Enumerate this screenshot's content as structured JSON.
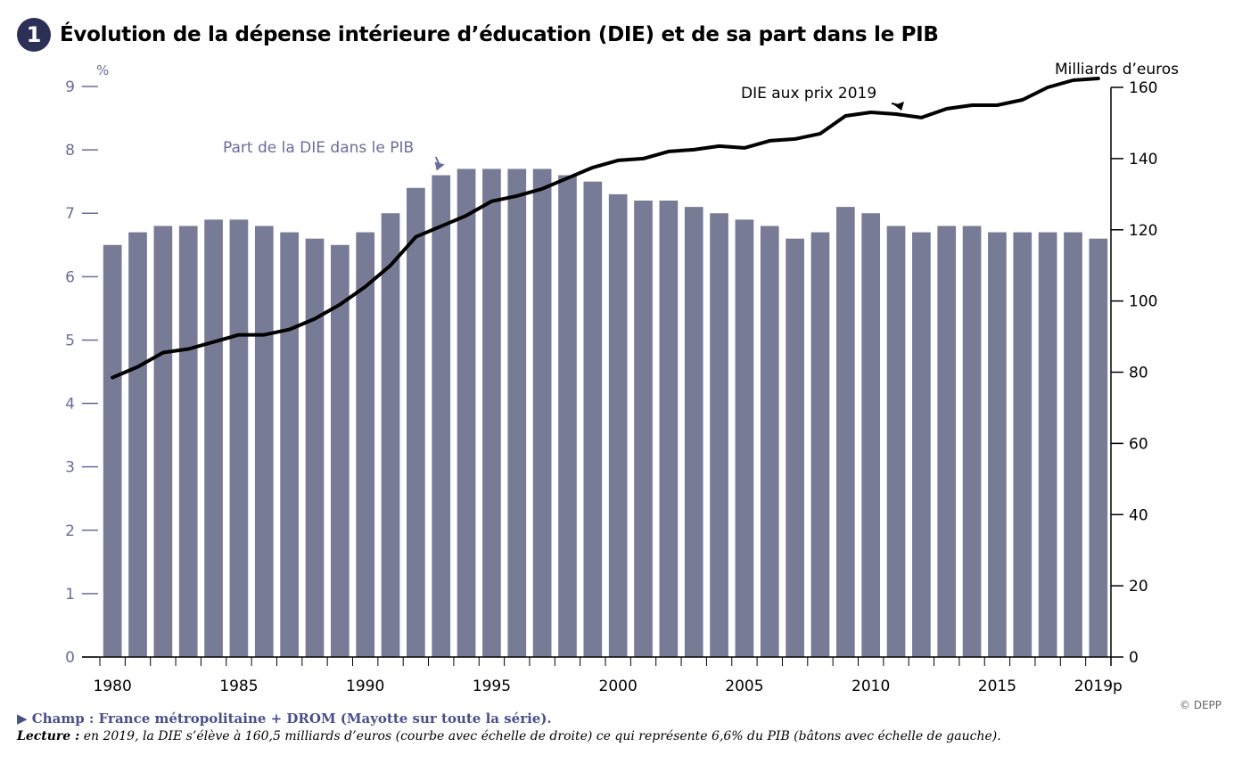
{
  "header": {
    "number": "1",
    "title": "Évolution de la dépense intérieure d’éducation (DIE) et de sa part dans le PIB"
  },
  "footer": {
    "champ": "▶  Champ : France métropolitaine + DROM (Mayotte sur toute la série).",
    "lecture_label": "Lecture :",
    "lecture_text": " en 2019, la DIE s’élève à 160,5 milliards d’euros (courbe avec échelle de droite) ce qui représente 6,6% du PIB (bâtons avec échelle de gauche).",
    "credit": "© DEPP"
  },
  "colors": {
    "bars": "#787b96",
    "line": "#000000",
    "left_axis_text": "#6a6d9a",
    "badge": "#2d3056"
  },
  "chart_data": {
    "type": "bar",
    "left_unit": "%",
    "right_unit": "Milliards d’euros",
    "ylim_left": [
      0,
      9
    ],
    "ylim_right": [
      0,
      160
    ],
    "left_ticks": [
      "0",
      "1",
      "2",
      "3",
      "4",
      "5",
      "6",
      "7",
      "8",
      "9"
    ],
    "right_ticks": [
      "0",
      "20",
      "40",
      "60",
      "80",
      "100",
      "120",
      "140",
      "160"
    ],
    "x_tick_labels": [
      "1980",
      "1985",
      "1990",
      "1995",
      "2000",
      "2005",
      "2010",
      "2015",
      "2019p"
    ],
    "categories": [
      "1980",
      "1981",
      "1982",
      "1983",
      "1984",
      "1985",
      "1986",
      "1987",
      "1988",
      "1989",
      "1990",
      "1991",
      "1992",
      "1993",
      "1994",
      "1995",
      "1996",
      "1997",
      "1998",
      "1999",
      "2000",
      "2001",
      "2002",
      "2003",
      "2004",
      "2005",
      "2006",
      "2007",
      "2008",
      "2009",
      "2010",
      "2011",
      "2012",
      "2013",
      "2014",
      "2015",
      "2016",
      "2017",
      "2018",
      "2019p"
    ],
    "series": [
      {
        "name": "Part de la DIE dans le PIB",
        "kind": "bar",
        "axis": "left",
        "values": [
          6.5,
          6.7,
          6.8,
          6.8,
          6.9,
          6.9,
          6.8,
          6.7,
          6.6,
          6.5,
          6.7,
          7.0,
          7.4,
          7.6,
          7.7,
          7.7,
          7.7,
          7.7,
          7.6,
          7.5,
          7.3,
          7.2,
          7.2,
          7.1,
          7.0,
          6.9,
          6.8,
          6.6,
          6.7,
          7.1,
          7.0,
          6.8,
          6.7,
          6.8,
          6.8,
          6.7,
          6.7,
          6.7,
          6.7,
          6.6
        ]
      },
      {
        "name": "DIE aux prix 2019",
        "kind": "line",
        "axis": "right",
        "values": [
          78.5,
          81.5,
          85.5,
          86.5,
          88.5,
          90.5,
          90.5,
          92,
          95,
          99,
          104,
          110,
          118,
          121,
          124,
          128,
          129.5,
          131.5,
          134.5,
          137.5,
          139.5,
          140,
          142,
          142.5,
          143.5,
          143,
          145,
          145.5,
          147,
          152,
          153,
          152.5,
          151.5,
          154,
          155,
          155,
          156.5,
          160,
          162,
          162.5
        ]
      }
    ],
    "annotations": [
      {
        "text": "Part de la DIE dans le PIB",
        "target": "1993"
      },
      {
        "text": "DIE aux prix 2019",
        "target": "2011"
      }
    ]
  }
}
